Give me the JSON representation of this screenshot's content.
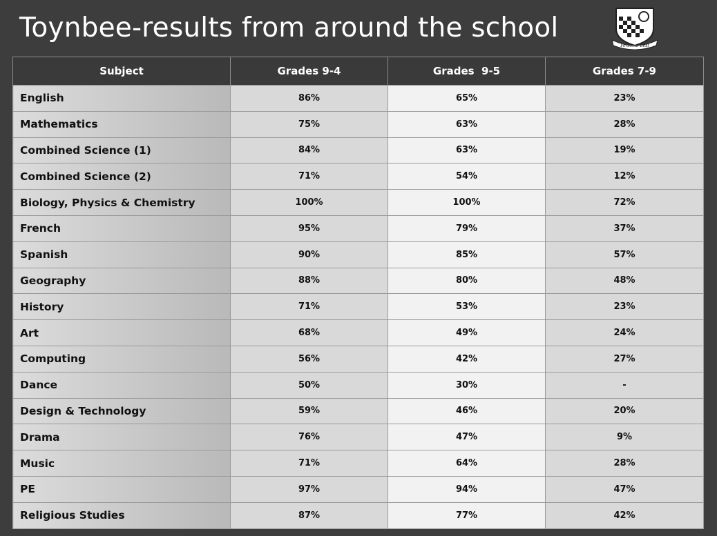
{
  "title": "Toynbee-results from around the school",
  "logo": {
    "motto": "Personal Best"
  },
  "table": {
    "header": [
      "Subject",
      "Grades 9-4",
      "Grades  9-5",
      "Grades 7-9"
    ],
    "rows": [
      [
        "English",
        "86%",
        "65%",
        "23%"
      ],
      [
        "Mathematics",
        "75%",
        "63%",
        "28%"
      ],
      [
        "Combined Science (1)",
        "84%",
        "63%",
        "19%"
      ],
      [
        "Combined Science (2)",
        "71%",
        "54%",
        "12%"
      ],
      [
        "Biology, Physics & Chemistry",
        "100%",
        "100%",
        "72%"
      ],
      [
        "French",
        "95%",
        "79%",
        "37%"
      ],
      [
        "Spanish",
        "90%",
        "85%",
        "57%"
      ],
      [
        "Geography",
        "88%",
        "80%",
        "48%"
      ],
      [
        "History",
        "71%",
        "53%",
        "23%"
      ],
      [
        "Art",
        "68%",
        "49%",
        "24%"
      ],
      [
        "Computing",
        "56%",
        "42%",
        "27%"
      ],
      [
        "Dance",
        "50%",
        "30%",
        "-"
      ],
      [
        "Design & Technology",
        "59%",
        "46%",
        "20%"
      ],
      [
        "Drama",
        "76%",
        "47%",
        "9%"
      ],
      [
        "Music",
        "71%",
        "64%",
        "28%"
      ],
      [
        "PE",
        "97%",
        "94%",
        "47%"
      ],
      [
        "Religious Studies",
        "87%",
        "77%",
        "42%"
      ]
    ]
  }
}
